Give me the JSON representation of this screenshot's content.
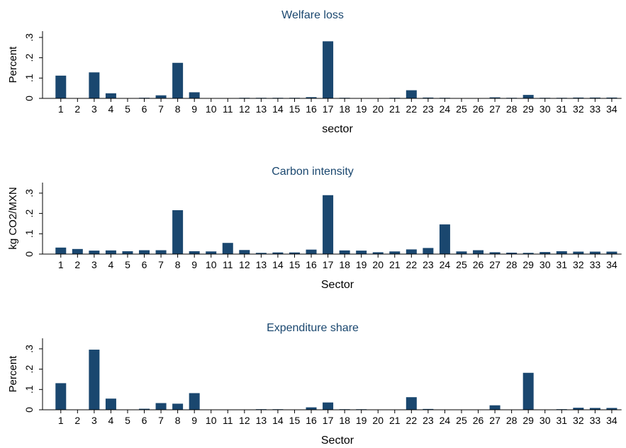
{
  "colors": {
    "bar": "#1a476f",
    "title": "#1a476f",
    "axis": "#000000",
    "background": "#ffffff"
  },
  "chart_data": [
    {
      "type": "bar",
      "title": "Welfare loss",
      "xlabel": "sector",
      "ylabel": "Percent",
      "ylim": [
        0,
        0.35
      ],
      "yticks": [
        0,
        0.1,
        0.2,
        0.3
      ],
      "ytick_labels": [
        "0",
        ".1",
        ".2",
        ".3"
      ],
      "grid": false,
      "categories": [
        "1",
        "2",
        "3",
        "4",
        "5",
        "6",
        "7",
        "8",
        "9",
        "10",
        "11",
        "12",
        "13",
        "14",
        "15",
        "16",
        "17",
        "18",
        "19",
        "20",
        "21",
        "22",
        "23",
        "24",
        "25",
        "26",
        "27",
        "28",
        "29",
        "30",
        "31",
        "32",
        "33",
        "34"
      ],
      "values": [
        0.112,
        0.0,
        0.128,
        0.025,
        0.0,
        0.003,
        0.015,
        0.175,
        0.03,
        0.0,
        0.0,
        0.002,
        0.001,
        0.001,
        0.001,
        0.006,
        0.281,
        0.001,
        0.0,
        0.0,
        0.001,
        0.04,
        0.004,
        0.001,
        0.0,
        0.0,
        0.005,
        0.002,
        0.017,
        0.001,
        0.001,
        0.004,
        0.004,
        0.004
      ]
    },
    {
      "type": "bar",
      "title": "Carbon intensity",
      "xlabel": "Sector",
      "ylabel": "kg CO2/MXN",
      "ylim": [
        0,
        0.35
      ],
      "yticks": [
        0,
        0.1,
        0.2,
        0.3
      ],
      "ytick_labels": [
        "0",
        ".1",
        ".2",
        ".3"
      ],
      "grid": false,
      "categories": [
        "1",
        "2",
        "3",
        "4",
        "5",
        "6",
        "7",
        "8",
        "9",
        "10",
        "11",
        "12",
        "13",
        "14",
        "15",
        "16",
        "17",
        "18",
        "19",
        "20",
        "21",
        "22",
        "23",
        "24",
        "25",
        "26",
        "27",
        "28",
        "29",
        "30",
        "31",
        "32",
        "33",
        "34"
      ],
      "values": [
        0.032,
        0.025,
        0.017,
        0.018,
        0.014,
        0.019,
        0.019,
        0.216,
        0.014,
        0.013,
        0.055,
        0.02,
        0.006,
        0.008,
        0.008,
        0.022,
        0.29,
        0.018,
        0.017,
        0.009,
        0.013,
        0.023,
        0.03,
        0.146,
        0.013,
        0.019,
        0.009,
        0.007,
        0.006,
        0.01,
        0.014,
        0.012,
        0.012,
        0.012
      ]
    },
    {
      "type": "bar",
      "title": "Expenditure share",
      "xlabel": "Sector",
      "ylabel": "Percent",
      "ylim": [
        0,
        0.35
      ],
      "yticks": [
        0,
        0.1,
        0.2,
        0.3
      ],
      "ytick_labels": [
        "0",
        ".1",
        ".2",
        ".3"
      ],
      "grid": false,
      "categories": [
        "1",
        "2",
        "3",
        "4",
        "5",
        "6",
        "7",
        "8",
        "9",
        "10",
        "11",
        "12",
        "13",
        "14",
        "15",
        "16",
        "17",
        "18",
        "19",
        "20",
        "21",
        "22",
        "23",
        "24",
        "25",
        "26",
        "27",
        "28",
        "29",
        "30",
        "31",
        "32",
        "33",
        "34"
      ],
      "values": [
        0.131,
        0.0,
        0.296,
        0.055,
        0.0,
        0.005,
        0.033,
        0.03,
        0.082,
        0.0,
        0.0,
        0.0,
        0.003,
        0.002,
        0.0,
        0.012,
        0.036,
        0.002,
        0.001,
        0.0,
        0.0,
        0.062,
        0.004,
        0.0,
        0.0,
        0.0,
        0.022,
        0.0,
        0.182,
        0.0,
        0.003,
        0.01,
        0.009,
        0.009
      ]
    }
  ]
}
